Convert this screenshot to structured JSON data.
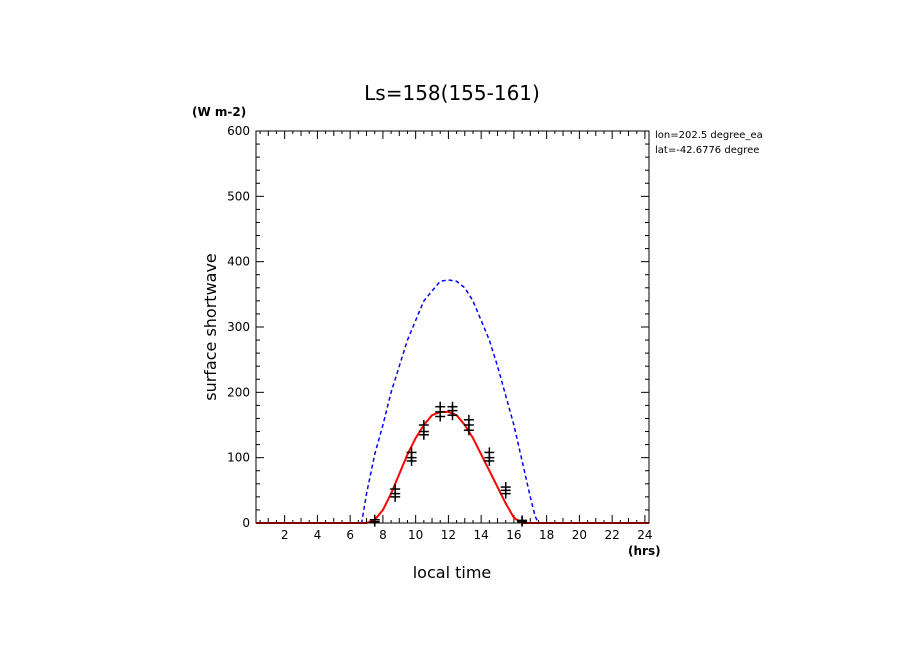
{
  "chart_data": {
    "type": "line",
    "title": "Ls=158(155-161)",
    "ylabel": "surface shortwave",
    "yunit": "(W m-2)",
    "xlabel": "local time",
    "xunit": "(hrs)",
    "annotations": [
      "lon=202.5 degree_ea",
      "lat=-42.6776 degree"
    ],
    "xlim": [
      0.25,
      24.25
    ],
    "ylim": [
      0,
      600
    ],
    "x_ticks": [
      2,
      4,
      6,
      8,
      10,
      12,
      14,
      16,
      18,
      20,
      22,
      24
    ],
    "y_ticks": [
      0,
      100,
      200,
      300,
      400,
      500,
      600
    ],
    "grid": false,
    "series": [
      {
        "style": "dashed",
        "color": "#0000ff",
        "x": [
          0.25,
          1,
          2,
          3,
          4,
          5,
          6,
          6.7,
          7,
          7.5,
          8,
          8.5,
          9,
          9.5,
          10,
          10.5,
          11,
          11.5,
          12,
          12.5,
          13,
          13.5,
          14,
          14.5,
          15,
          15.5,
          16,
          16.5,
          17,
          17.3,
          17.5,
          18,
          19,
          20,
          21,
          22,
          23,
          24,
          24.25
        ],
        "y": [
          0,
          0,
          0,
          0,
          0,
          0,
          0,
          0,
          45,
          105,
          150,
          200,
          240,
          280,
          310,
          340,
          355,
          370,
          372,
          370,
          360,
          340,
          310,
          280,
          240,
          195,
          150,
          95,
          40,
          10,
          0,
          0,
          0,
          0,
          0,
          0,
          0,
          0,
          0
        ]
      },
      {
        "style": "solid",
        "color": "#ff0000",
        "x": [
          0.25,
          1,
          2,
          3,
          4,
          5,
          6,
          7,
          7.5,
          8,
          8.5,
          9,
          9.5,
          10,
          10.5,
          11,
          11.5,
          12,
          12.5,
          13,
          13.5,
          14,
          14.5,
          15,
          15.5,
          16,
          16.5,
          17,
          17.5,
          18,
          19,
          20,
          21,
          22,
          23,
          24,
          24.25
        ],
        "y": [
          0,
          0,
          0,
          0,
          0,
          0,
          0,
          0,
          5,
          20,
          45,
          75,
          105,
          130,
          150,
          165,
          170,
          170,
          165,
          150,
          130,
          105,
          80,
          55,
          30,
          8,
          0,
          0,
          0,
          0,
          0,
          0,
          0,
          0,
          0,
          0,
          0
        ]
      },
      {
        "style": "markers",
        "marker": "+",
        "color": "#000000",
        "points": [
          [
            7.5,
            5
          ],
          [
            7.5,
            2
          ],
          [
            8.75,
            45
          ],
          [
            8.75,
            52
          ],
          [
            8.75,
            40
          ],
          [
            9.75,
            100
          ],
          [
            9.75,
            108
          ],
          [
            9.75,
            95
          ],
          [
            10.5,
            140
          ],
          [
            10.5,
            150
          ],
          [
            10.5,
            135
          ],
          [
            11.5,
            170
          ],
          [
            11.5,
            178
          ],
          [
            11.5,
            163
          ],
          [
            12.25,
            172
          ],
          [
            12.25,
            165
          ],
          [
            12.25,
            178
          ],
          [
            13.25,
            150
          ],
          [
            13.25,
            158
          ],
          [
            13.25,
            142
          ],
          [
            14.5,
            100
          ],
          [
            14.5,
            108
          ],
          [
            14.5,
            95
          ],
          [
            15.5,
            50
          ],
          [
            15.5,
            55
          ],
          [
            15.5,
            45
          ],
          [
            16.5,
            4
          ],
          [
            16.5,
            2
          ]
        ]
      }
    ]
  }
}
